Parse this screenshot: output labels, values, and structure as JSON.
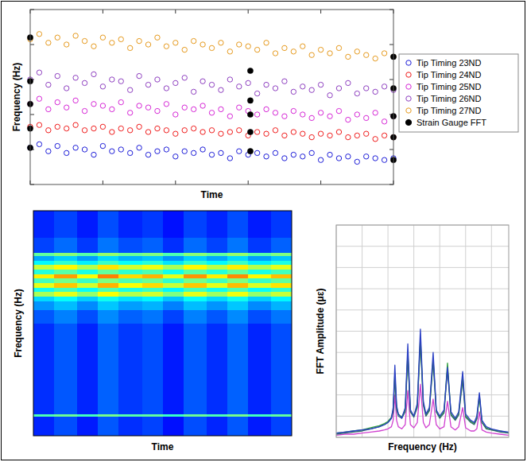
{
  "chart_data": [
    {
      "type": "scatter",
      "x_label": "Time",
      "y_label": "Frequency (Hz)",
      "xlim": [
        0,
        100
      ],
      "ylim": [
        0,
        100
      ],
      "xticks": [
        0,
        20,
        40,
        60,
        80,
        100
      ],
      "yticks": [
        0,
        20,
        40,
        60,
        80,
        100
      ],
      "tick_labels": false,
      "grid": false,
      "legend": "right",
      "x": [
        0,
        2.5,
        5,
        7.5,
        10,
        12.5,
        15,
        17.5,
        20,
        22.5,
        25,
        27.5,
        30,
        32.5,
        35,
        37.5,
        40,
        42.5,
        45,
        47.5,
        50,
        52.5,
        55,
        57.5,
        60,
        62.5,
        65,
        67.5,
        70,
        72.5,
        75,
        77.5,
        80,
        82.5,
        85,
        87.5,
        90,
        92.5,
        95,
        97.5,
        100
      ],
      "series": [
        {
          "name": "Tip Timing 23ND",
          "color": "#1c1cd8",
          "marker": "open_circle",
          "values": [
            21,
            23,
            19,
            22,
            18,
            21,
            20,
            17,
            22,
            19,
            20,
            18,
            21,
            17,
            19,
            20,
            16,
            19,
            18,
            20,
            17,
            18,
            15,
            19,
            17,
            18,
            16,
            18,
            15,
            17,
            16,
            18,
            14,
            17,
            15,
            16,
            13,
            16,
            15,
            14,
            15
          ]
        },
        {
          "name": "Tip Timing 24ND",
          "color": "#f01c1c",
          "marker": "open_circle",
          "values": [
            33,
            34,
            31,
            33,
            32,
            34,
            31,
            32,
            33,
            30,
            32,
            31,
            33,
            30,
            32,
            31,
            29,
            31,
            32,
            30,
            31,
            29,
            30,
            31,
            28,
            30,
            29,
            31,
            28,
            30,
            29,
            27,
            29,
            28,
            30,
            27,
            28,
            29,
            26,
            28,
            27
          ]
        },
        {
          "name": "Tip Timing 25ND",
          "color": "#d627d6",
          "marker": "open_circle",
          "values": [
            46,
            49,
            43,
            47,
            44,
            48,
            42,
            46,
            45,
            43,
            47,
            41,
            45,
            44,
            42,
            46,
            40,
            44,
            43,
            45,
            41,
            43,
            39,
            44,
            42,
            40,
            43,
            41,
            39,
            42,
            40,
            38,
            41,
            39,
            42,
            37,
            40,
            38,
            41,
            36,
            39
          ]
        },
        {
          "name": "Tip Timing 26ND",
          "color": "#8e3fc0",
          "marker": "open_circle",
          "values": [
            60,
            64,
            57,
            62,
            55,
            61,
            58,
            63,
            56,
            60,
            59,
            54,
            62,
            57,
            60,
            55,
            58,
            61,
            53,
            59,
            57,
            54,
            60,
            56,
            58,
            52,
            57,
            55,
            59,
            53,
            56,
            54,
            57,
            51,
            55,
            58,
            52,
            55,
            53,
            56,
            54
          ]
        },
        {
          "name": "Tip Timing 27ND",
          "color": "#e69a1e",
          "marker": "open_circle",
          "values": [
            83,
            86,
            81,
            84,
            80,
            85,
            82,
            79,
            84,
            81,
            83,
            78,
            82,
            80,
            84,
            79,
            81,
            77,
            82,
            80,
            78,
            81,
            76,
            80,
            79,
            77,
            81,
            75,
            78,
            76,
            79,
            74,
            77,
            75,
            78,
            73,
            76,
            74,
            72,
            75,
            73
          ]
        },
        {
          "name": "Strain Gauge FFT",
          "color": "#000000",
          "marker": "filled_circle",
          "x": [
            0,
            0,
            0,
            0,
            0,
            60.6,
            60.6,
            60.6,
            60.6,
            60.6,
            100,
            100,
            100,
            100,
            100
          ],
          "values": [
            84,
            59,
            46,
            32,
            21,
            65,
            48,
            40,
            30,
            19,
            73,
            55,
            39,
            27,
            14
          ]
        }
      ]
    },
    {
      "type": "heatmap",
      "x_label": "Time",
      "y_label": "Frequency (Hz)",
      "xlim": [
        0,
        100
      ],
      "ylim": [
        0,
        100
      ],
      "tick_labels": false,
      "zlim": [
        0,
        1
      ],
      "x_bins": [
        0,
        8,
        17,
        25,
        33,
        42,
        50,
        58,
        67,
        75,
        83,
        92,
        100
      ],
      "y_bins": [
        0,
        8.6,
        9.8,
        50,
        56,
        60,
        62,
        64,
        66,
        68,
        70,
        72,
        74,
        76,
        78,
        80,
        81.5,
        88,
        100
      ],
      "cells": [
        [
          0.16,
          0.2,
          0.15,
          0.21,
          0.17,
          0.19,
          0.14,
          0.2,
          0.16,
          0.21,
          0.15,
          0.19
        ],
        [
          0.45,
          0.48,
          0.44,
          0.49,
          0.46,
          0.47,
          0.43,
          0.48,
          0.45,
          0.49,
          0.44,
          0.47
        ],
        [
          0.17,
          0.21,
          0.16,
          0.22,
          0.18,
          0.2,
          0.15,
          0.21,
          0.17,
          0.22,
          0.16,
          0.2
        ],
        [
          0.21,
          0.25,
          0.2,
          0.26,
          0.22,
          0.24,
          0.19,
          0.25,
          0.21,
          0.26,
          0.2,
          0.24
        ],
        [
          0.27,
          0.31,
          0.26,
          0.32,
          0.28,
          0.3,
          0.25,
          0.31,
          0.27,
          0.32,
          0.26,
          0.3
        ],
        [
          0.34,
          0.38,
          0.33,
          0.39,
          0.35,
          0.37,
          0.32,
          0.38,
          0.34,
          0.39,
          0.33,
          0.37
        ],
        [
          0.54,
          0.6,
          0.52,
          0.62,
          0.55,
          0.58,
          0.5,
          0.6,
          0.53,
          0.61,
          0.52,
          0.57
        ],
        [
          0.39,
          0.44,
          0.38,
          0.45,
          0.4,
          0.43,
          0.37,
          0.44,
          0.39,
          0.45,
          0.38,
          0.42
        ],
        [
          0.6,
          0.68,
          0.58,
          0.7,
          0.62,
          0.66,
          0.57,
          0.68,
          0.6,
          0.69,
          0.59,
          0.65
        ],
        [
          0.44,
          0.49,
          0.43,
          0.5,
          0.45,
          0.48,
          0.42,
          0.49,
          0.44,
          0.5,
          0.43,
          0.47
        ],
        [
          0.64,
          0.72,
          0.62,
          0.75,
          0.66,
          0.7,
          0.6,
          0.73,
          0.64,
          0.74,
          0.63,
          0.69
        ],
        [
          0.41,
          0.46,
          0.4,
          0.47,
          0.42,
          0.45,
          0.39,
          0.46,
          0.41,
          0.47,
          0.4,
          0.44
        ],
        [
          0.57,
          0.63,
          0.55,
          0.65,
          0.58,
          0.61,
          0.54,
          0.63,
          0.56,
          0.64,
          0.55,
          0.6
        ],
        [
          0.37,
          0.42,
          0.36,
          0.43,
          0.38,
          0.41,
          0.35,
          0.42,
          0.37,
          0.43,
          0.36,
          0.4
        ],
        [
          0.29,
          0.33,
          0.28,
          0.34,
          0.3,
          0.32,
          0.27,
          0.33,
          0.29,
          0.34,
          0.28,
          0.32
        ],
        [
          0.47,
          0.51,
          0.46,
          0.52,
          0.48,
          0.5,
          0.45,
          0.51,
          0.47,
          0.52,
          0.46,
          0.5
        ],
        [
          0.19,
          0.23,
          0.18,
          0.24,
          0.2,
          0.22,
          0.17,
          0.23,
          0.19,
          0.24,
          0.18,
          0.22
        ],
        [
          0.16,
          0.19,
          0.15,
          0.2,
          0.16,
          0.18,
          0.14,
          0.19,
          0.16,
          0.2,
          0.15,
          0.18
        ]
      ]
    },
    {
      "type": "line",
      "x_label": "Frequency (Hz)",
      "y_label": "FFT Amplitude (με)",
      "xlim": [
        0,
        100
      ],
      "ylim": [
        0,
        100
      ],
      "xticks": [
        0,
        15,
        30,
        45,
        60,
        75,
        90
      ],
      "yticks": [
        0,
        10,
        20,
        30,
        40,
        50,
        60,
        70,
        80,
        90,
        100
      ],
      "grid": true,
      "tick_labels": false,
      "x": [
        0,
        5,
        10,
        15,
        20,
        25,
        28,
        30,
        32,
        33,
        34,
        35,
        36,
        38,
        40,
        41.5,
        43,
        45,
        47,
        48.8,
        50.5,
        52,
        54,
        56.2,
        58,
        60,
        62.5,
        64.5,
        66.5,
        69,
        71,
        73.3,
        75,
        78,
        80,
        81.5,
        83,
        84.5,
        87,
        90,
        95,
        100
      ],
      "series": [
        {
          "color": "#d040d0",
          "values": [
            1,
            1.5,
            1.5,
            2,
            2.5,
            3,
            3.5,
            4,
            5,
            8,
            20,
            8,
            5,
            4,
            6,
            22,
            6,
            4.5,
            7,
            25,
            7,
            4.5,
            6,
            18,
            6,
            4,
            5,
            17,
            5,
            3.5,
            5,
            14,
            4.5,
            3,
            3,
            4,
            12,
            3.5,
            2.5,
            2,
            1.5,
            1
          ]
        },
        {
          "color": "#2d9e3a",
          "values": [
            2,
            2.5,
            3,
            3.5,
            4.5,
            5.5,
            6.5,
            7.5,
            9.5,
            13,
            30,
            14,
            11,
            9.5,
            13,
            40,
            12,
            10,
            15,
            47,
            16,
            10.5,
            13,
            37,
            12,
            9.5,
            12,
            35,
            11,
            8.5,
            11,
            29,
            10,
            7.5,
            6.5,
            9,
            19,
            7,
            4.5,
            3.5,
            3,
            2
          ]
        },
        {
          "color": "#2f6a6a",
          "values": [
            1.5,
            2,
            2.5,
            3,
            4,
            5,
            6,
            7,
            9,
            12,
            28,
            13,
            10,
            9,
            12,
            38,
            12,
            9.5,
            14,
            45,
            15,
            10,
            12.5,
            36,
            12,
            9,
            11.5,
            32,
            10.5,
            8,
            10.5,
            27,
            9.5,
            7,
            6,
            8.5,
            20,
            7,
            4,
            3.5,
            2.5,
            2
          ]
        },
        {
          "color": "#2a3fc4",
          "values": [
            2,
            2.5,
            3,
            3.5,
            4,
            5,
            6,
            7,
            9,
            14,
            34,
            15,
            11,
            9,
            14,
            44,
            13,
            10,
            16,
            51,
            17,
            11,
            14,
            40,
            13,
            10,
            13,
            33,
            12,
            9,
            12,
            31,
            11,
            8,
            7,
            10,
            21,
            8,
            5,
            4,
            3,
            2.5
          ]
        }
      ]
    }
  ]
}
